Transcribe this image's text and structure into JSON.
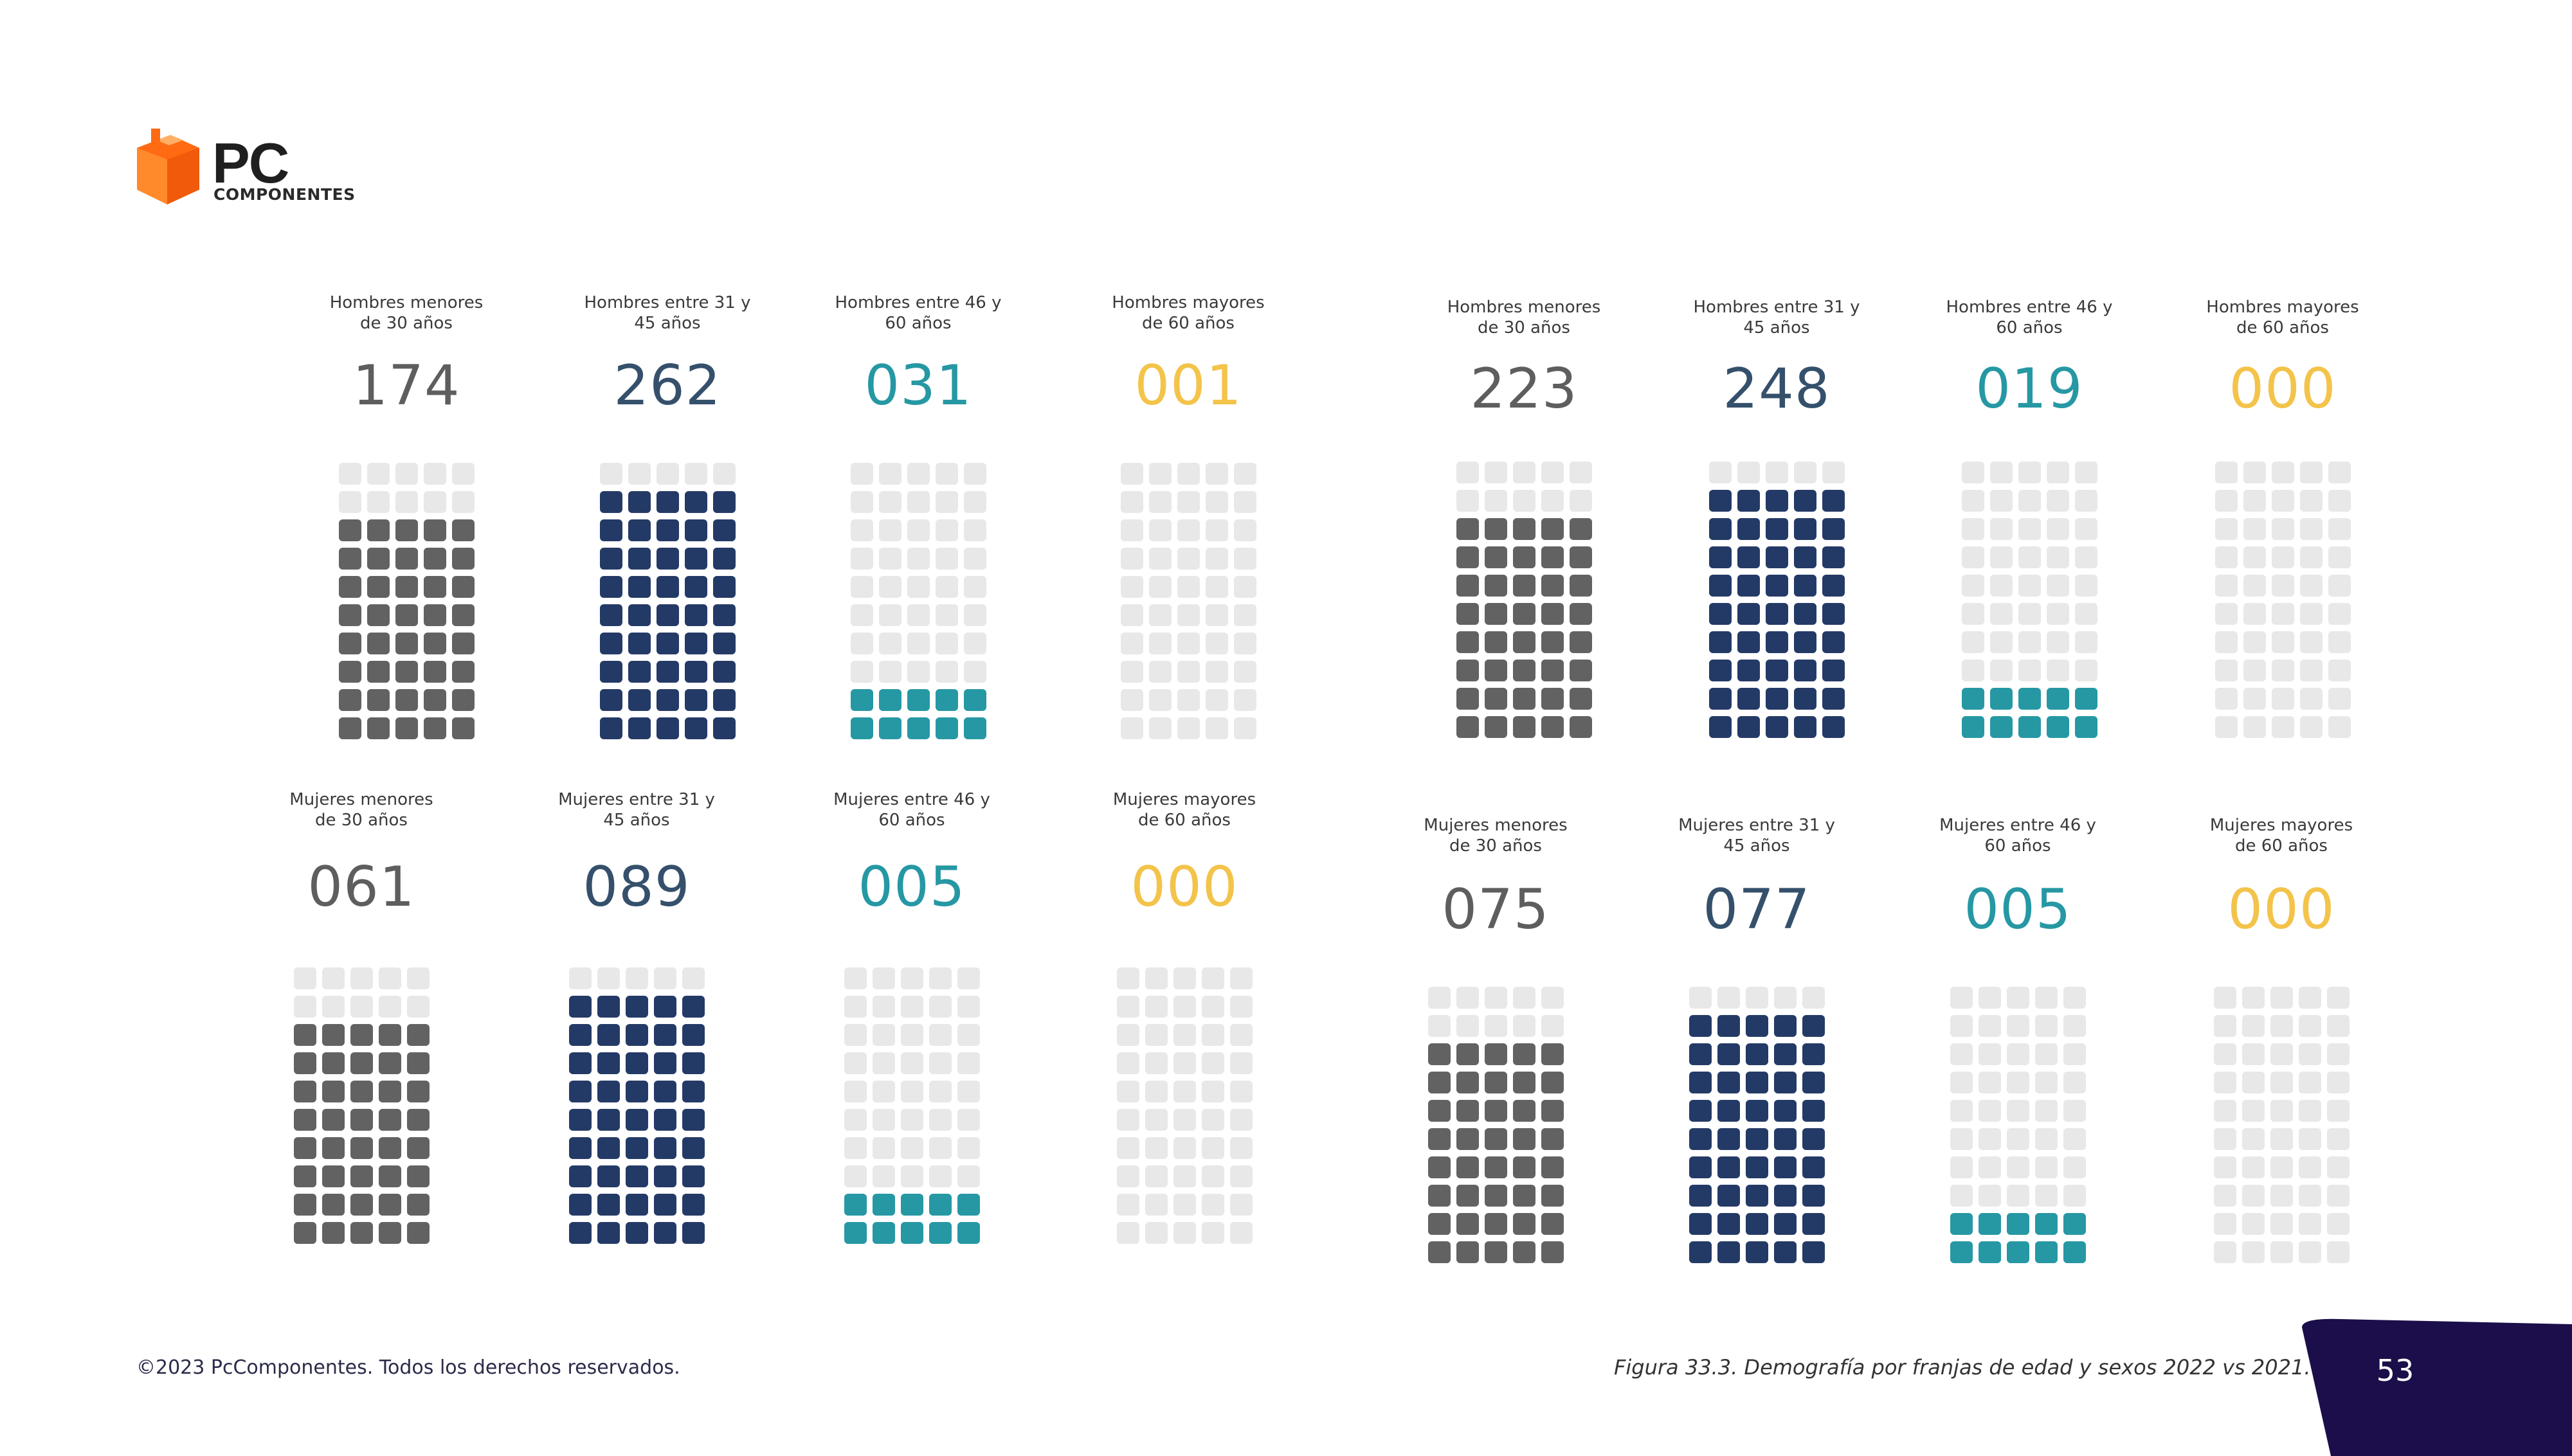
{
  "brand": {
    "logo_main": "PC",
    "logo_sub": "COMPONENTES",
    "orange": "#ff6a13",
    "dark": "#1f1f1f"
  },
  "colors": {
    "gray": "#626262",
    "navy": "#243a66",
    "teal": "#2698a4",
    "yellow": "#f3c34a",
    "empty": "#e8e8e8",
    "tab": "#1b0e4a",
    "label_num_navy": "#35506b"
  },
  "chart_data": [
    {
      "type": "waffle",
      "year": "2022",
      "grid": {
        "rows": 10,
        "cols": 5
      },
      "items": [
        {
          "label": "Hombres menores\nde 30 años",
          "value": "174",
          "filled_rows": 8,
          "color": "gray"
        },
        {
          "label": "Hombres entre 31 y\n45 años",
          "value": "262",
          "filled_rows": 9,
          "color": "navy"
        },
        {
          "label": "Hombres entre 46 y\n60 años",
          "value": "031",
          "filled_rows": 2,
          "color": "teal"
        },
        {
          "label": "Hombres mayores\nde 60 años",
          "value": "001",
          "filled_rows": 0,
          "color": "yellow"
        },
        {
          "label": "Mujeres menores\nde 30 años",
          "value": "061",
          "filled_rows": 8,
          "color": "gray"
        },
        {
          "label": "Mujeres entre 31 y\n45 años",
          "value": "089",
          "filled_rows": 9,
          "color": "navy"
        },
        {
          "label": "Mujeres entre 46 y\n60 años",
          "value": "005",
          "filled_rows": 2,
          "color": "teal"
        },
        {
          "label": "Mujeres mayores\nde 60 años",
          "value": "000",
          "filled_rows": 0,
          "color": "yellow"
        }
      ]
    },
    {
      "type": "waffle",
      "year": "2021",
      "grid": {
        "rows": 10,
        "cols": 5
      },
      "items": [
        {
          "label": "Hombres menores\nde 30 años",
          "value": "223",
          "filled_rows": 8,
          "color": "gray"
        },
        {
          "label": "Hombres entre 31 y\n45 años",
          "value": "248",
          "filled_rows": 9,
          "color": "navy"
        },
        {
          "label": "Hombres entre 46 y\n60 años",
          "value": "019",
          "filled_rows": 2,
          "color": "teal"
        },
        {
          "label": "Hombres mayores\nde 60 años",
          "value": "000",
          "filled_rows": 0,
          "color": "yellow"
        },
        {
          "label": "Mujeres menores\nde 30 años",
          "value": "075",
          "filled_rows": 8,
          "color": "gray"
        },
        {
          "label": "Mujeres entre 31 y\n45 años",
          "value": "077",
          "filled_rows": 9,
          "color": "navy"
        },
        {
          "label": "Mujeres entre 46 y\n60 años",
          "value": "005",
          "filled_rows": 2,
          "color": "teal"
        },
        {
          "label": "Mujeres mayores\nde 60 años",
          "value": "000",
          "filled_rows": 0,
          "color": "yellow"
        }
      ]
    }
  ],
  "footer": {
    "copyright": "©2023 PcComponentes. Todos los derechos reservados.",
    "caption": "Figura 33.3. Demografía por franjas de edad y sexos 2022 vs 2021.",
    "page_number": "53"
  }
}
